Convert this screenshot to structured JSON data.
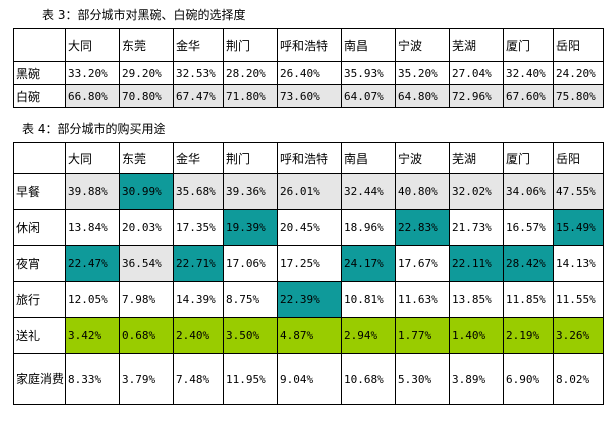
{
  "table3": {
    "caption": "表 3：部分城市对黑碗、白碗的选择度",
    "cities": [
      "大同",
      "东莞",
      "金华",
      "荆门",
      "呼和浩特",
      "南昌",
      "宁波",
      "芜湖",
      "厦门",
      "岳阳"
    ],
    "rows": [
      {
        "label": "黑碗",
        "values": [
          "33.20%",
          "29.20%",
          "32.53%",
          "28.20%",
          "26.40%",
          "35.93%",
          "35.20%",
          "27.04%",
          "32.40%",
          "24.20%"
        ],
        "highlight": "none"
      },
      {
        "label": "白碗",
        "values": [
          "66.80%",
          "70.80%",
          "67.47%",
          "71.80%",
          "73.60%",
          "64.07%",
          "64.80%",
          "72.96%",
          "67.60%",
          "75.80%"
        ],
        "highlight": "grey"
      }
    ]
  },
  "table4": {
    "caption": "表 4：部分城市的购买用途",
    "cities": [
      "大同",
      "东莞",
      "金华",
      "荆门",
      "呼和浩特",
      "南昌",
      "宁波",
      "芜湖",
      "厦门",
      "岳阳"
    ],
    "rows": [
      {
        "label": "早餐",
        "values": [
          "39.88%",
          "30.99%",
          "35.68%",
          "39.36%",
          "26.01%",
          "32.44%",
          "40.80%",
          "32.02%",
          "34.06%",
          "47.55%"
        ],
        "cell_colors": [
          "grey",
          "teal",
          "grey",
          "grey",
          "grey",
          "grey",
          "grey",
          "grey",
          "grey",
          "grey"
        ]
      },
      {
        "label": "休闲",
        "values": [
          "13.84%",
          "20.03%",
          "17.35%",
          "19.39%",
          "20.45%",
          "18.96%",
          "22.83%",
          "21.73%",
          "16.57%",
          "15.49%"
        ],
        "cell_colors": [
          "",
          "",
          "",
          "teal",
          "",
          "",
          "teal",
          "",
          "",
          "teal"
        ]
      },
      {
        "label": "夜宵",
        "values": [
          "22.47%",
          "36.54%",
          "22.71%",
          "17.06%",
          "17.25%",
          "24.17%",
          "17.67%",
          "22.11%",
          "28.42%",
          "14.13%"
        ],
        "cell_colors": [
          "teal",
          "grey",
          "teal",
          "",
          "",
          "teal",
          "",
          "teal",
          "teal",
          ""
        ]
      },
      {
        "label": "旅行",
        "values": [
          "12.05%",
          "7.98%",
          "14.39%",
          "8.75%",
          "22.39%",
          "10.81%",
          "11.63%",
          "13.85%",
          "11.85%",
          "11.55%"
        ],
        "cell_colors": [
          "",
          "",
          "",
          "",
          "teal",
          "",
          "",
          "",
          "",
          ""
        ]
      },
      {
        "label": "送礼",
        "values": [
          "3.42%",
          "0.68%",
          "2.40%",
          "3.50%",
          "4.87%",
          "2.94%",
          "1.77%",
          "1.40%",
          "2.19%",
          "3.26%"
        ],
        "cell_colors": [
          "lime",
          "lime",
          "lime",
          "lime",
          "lime",
          "lime",
          "lime",
          "lime",
          "lime",
          "lime"
        ]
      },
      {
        "label": "家庭消费",
        "values": [
          "8.33%",
          "3.79%",
          "7.48%",
          "11.95%",
          "9.04%",
          "10.68%",
          "5.30%",
          "3.89%",
          "6.90%",
          "8.02%"
        ],
        "cell_colors": [
          "",
          "",
          "",
          "",
          "",
          "",
          "",
          "",
          "",
          ""
        ]
      }
    ]
  },
  "colors": {
    "grey": "#e6e6e6",
    "teal": "#0f9a9a",
    "lime": "#99cc00"
  }
}
